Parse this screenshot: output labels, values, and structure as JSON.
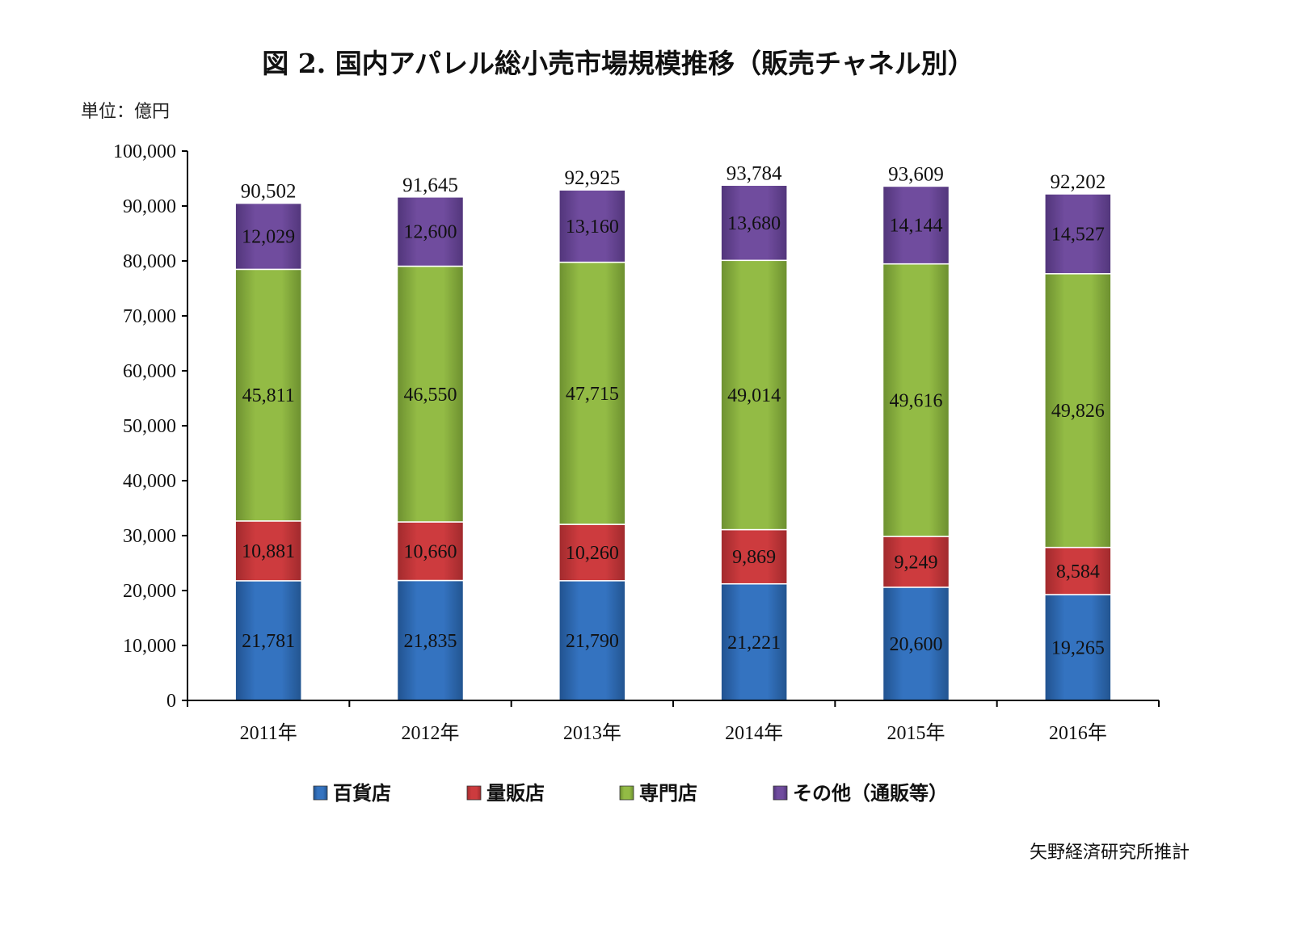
{
  "title": "図 2. 国内アパレル総小売市場規模推移（販売チャネル別）",
  "unit_label": "単位：億円",
  "source": "矢野経済研究所推計",
  "chart_data": {
    "type": "bar",
    "stacked": true,
    "categories": [
      "2011年",
      "2012年",
      "2013年",
      "2014年",
      "2015年",
      "2016年"
    ],
    "series": [
      {
        "name": "百貨店",
        "color": "#2f6db5",
        "values": [
          21781,
          21835,
          21790,
          21221,
          20600,
          19265
        ]
      },
      {
        "name": "量販店",
        "color": "#c6373a",
        "values": [
          10881,
          10660,
          10260,
          9869,
          9249,
          8584
        ]
      },
      {
        "name": "専門店",
        "color": "#8db43e",
        "values": [
          45811,
          46550,
          47715,
          49014,
          49616,
          49826
        ]
      },
      {
        "name": "その他（通販等）",
        "color": "#6a4696",
        "values": [
          12029,
          12600,
          13160,
          13680,
          14144,
          14527
        ]
      }
    ],
    "totals": [
      "90,502",
      "91,645",
      "92,925",
      "93,784",
      "93,609",
      "92,202"
    ],
    "segment_labels": [
      [
        "21,781",
        "21,835",
        "21,790",
        "21,221",
        "20,600",
        "19,265"
      ],
      [
        "10,881",
        "10,660",
        "10,260",
        "9,869",
        "9,249",
        "8,584"
      ],
      [
        "45,811",
        "46,550",
        "47,715",
        "49,014",
        "49,616",
        "49,826"
      ],
      [
        "12,029",
        "12,600",
        "13,160",
        "13,680",
        "14,144",
        "14,527"
      ]
    ],
    "ylim": [
      0,
      100000
    ],
    "yticks": [
      "0",
      "10,000",
      "20,000",
      "30,000",
      "40,000",
      "50,000",
      "60,000",
      "70,000",
      "80,000",
      "90,000",
      "100,000"
    ],
    "grid": false,
    "legend_position": "bottom"
  }
}
